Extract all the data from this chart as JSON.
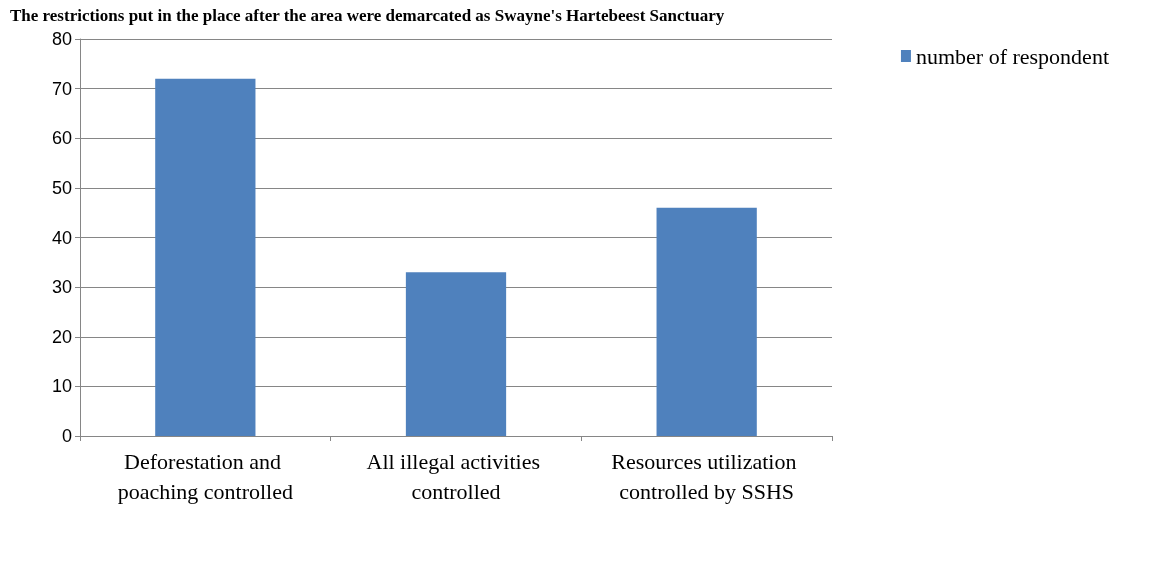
{
  "chart_data": {
    "type": "bar",
    "title": "The restrictions put in the place after the area were demarcated as Swayne's Hartebeest Sanctuary",
    "categories": [
      "Deforestation and poaching controlled",
      "All illegal activities controlled",
      "Resources utilization controlled by SSHS"
    ],
    "series": [
      {
        "name": "number of respondent",
        "color": "#4f81bd",
        "values": [
          72,
          33,
          46
        ]
      }
    ],
    "ylim": [
      0,
      80
    ],
    "yticks": [
      0,
      10,
      20,
      30,
      40,
      50,
      60,
      70,
      80
    ],
    "grid": "y",
    "legend": "top right"
  }
}
